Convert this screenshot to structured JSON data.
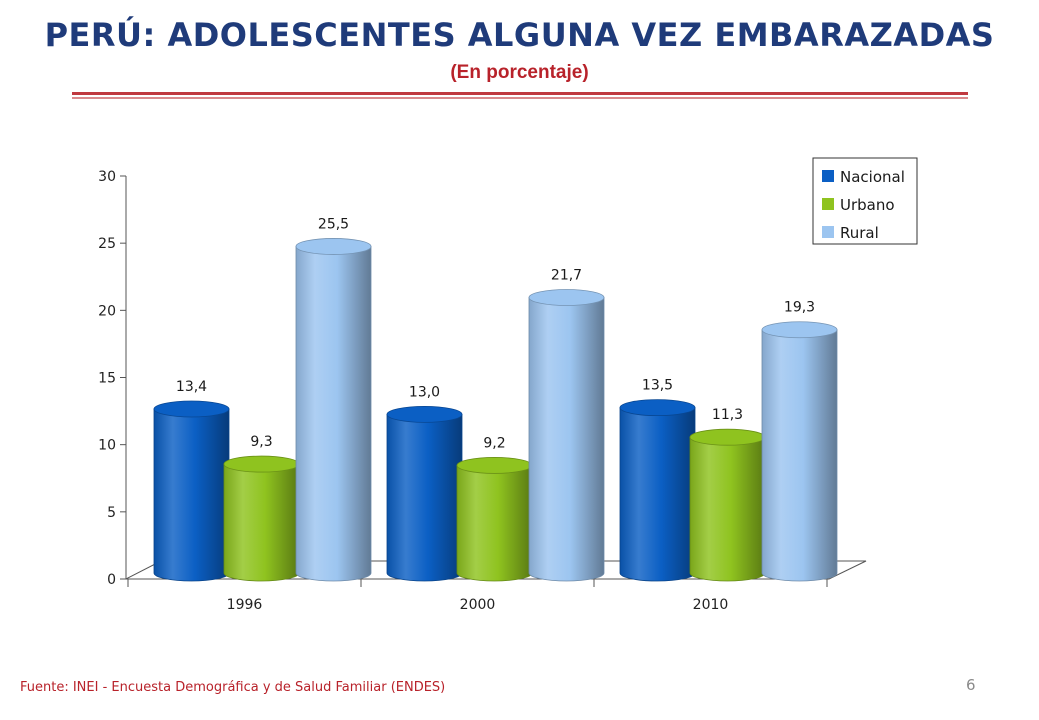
{
  "header": {
    "title": "PERÚ: ADOLESCENTES ALGUNA VEZ EMBARAZADAS",
    "subtitle": "(En porcentaje)"
  },
  "footer": {
    "source": "Fuente: INEI - Encuesta Demográfica y de Salud Familiar (ENDES)",
    "page_number": "6"
  },
  "chart_data": {
    "type": "bar",
    "style": "3d-cylinder",
    "categories": [
      "1996",
      "2000",
      "2010"
    ],
    "series": [
      {
        "name": "Nacional",
        "values": [
          13.4,
          13.0,
          13.5
        ],
        "labels": [
          "13,4",
          "13,0",
          "13,5"
        ],
        "color": "#0b5fc4"
      },
      {
        "name": "Urbano",
        "values": [
          9.3,
          9.2,
          11.3
        ],
        "labels": [
          "9,3",
          "9,2",
          "11,3"
        ],
        "color": "#8fc31f"
      },
      {
        "name": "Rural",
        "values": [
          25.5,
          21.7,
          19.3
        ],
        "labels": [
          "25,5",
          "21,7",
          "19,3"
        ],
        "color": "#9cc5f0"
      }
    ],
    "ylim": [
      0,
      30
    ],
    "yticks": [
      0,
      5,
      10,
      15,
      20,
      25,
      30
    ],
    "legend": "top-right",
    "grid": false
  }
}
